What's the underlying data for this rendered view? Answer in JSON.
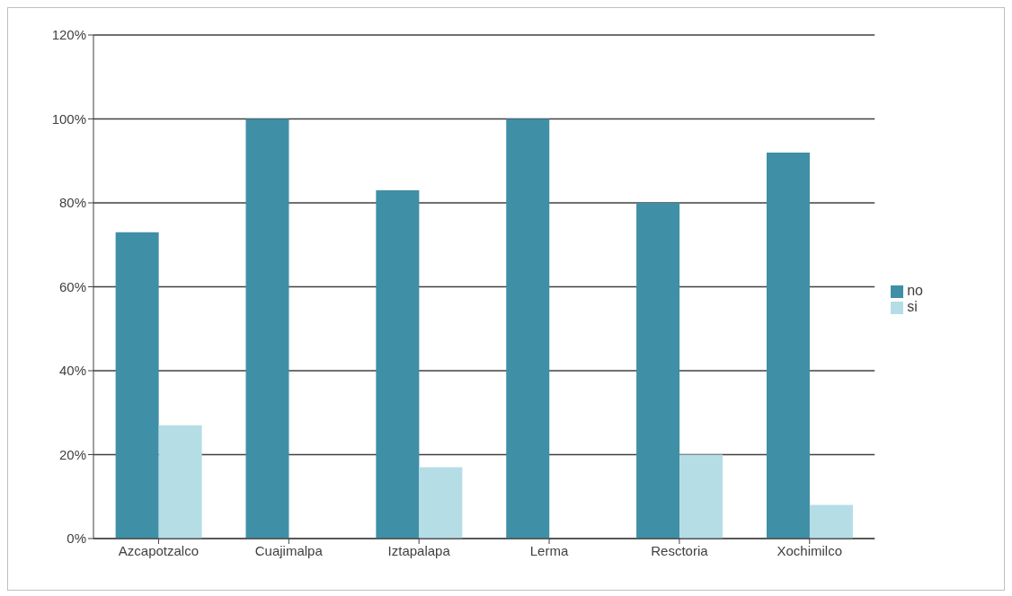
{
  "chart_data": {
    "type": "bar",
    "categories": [
      "Azcapotzalco",
      "Cuajimalpa",
      "Iztapalapa",
      "Lerma",
      "Resctoria",
      "Xochimilco"
    ],
    "series": [
      {
        "name": "no",
        "color": "#3f8fa6",
        "values": [
          73,
          100,
          83,
          100,
          80,
          92
        ]
      },
      {
        "name": "si",
        "color": "#b5dde6",
        "values": [
          27,
          0,
          17,
          0,
          20,
          8
        ]
      }
    ],
    "ylim": [
      0,
      120
    ],
    "yticks": [
      {
        "value": 0,
        "label": "0%"
      },
      {
        "value": 20,
        "label": "20%"
      },
      {
        "value": 40,
        "label": "40%"
      },
      {
        "value": 60,
        "label": "60%"
      },
      {
        "value": 80,
        "label": "80%"
      },
      {
        "value": 100,
        "label": "100%"
      },
      {
        "value": 120,
        "label": "120%"
      }
    ],
    "grid": "y",
    "legend": "right"
  }
}
